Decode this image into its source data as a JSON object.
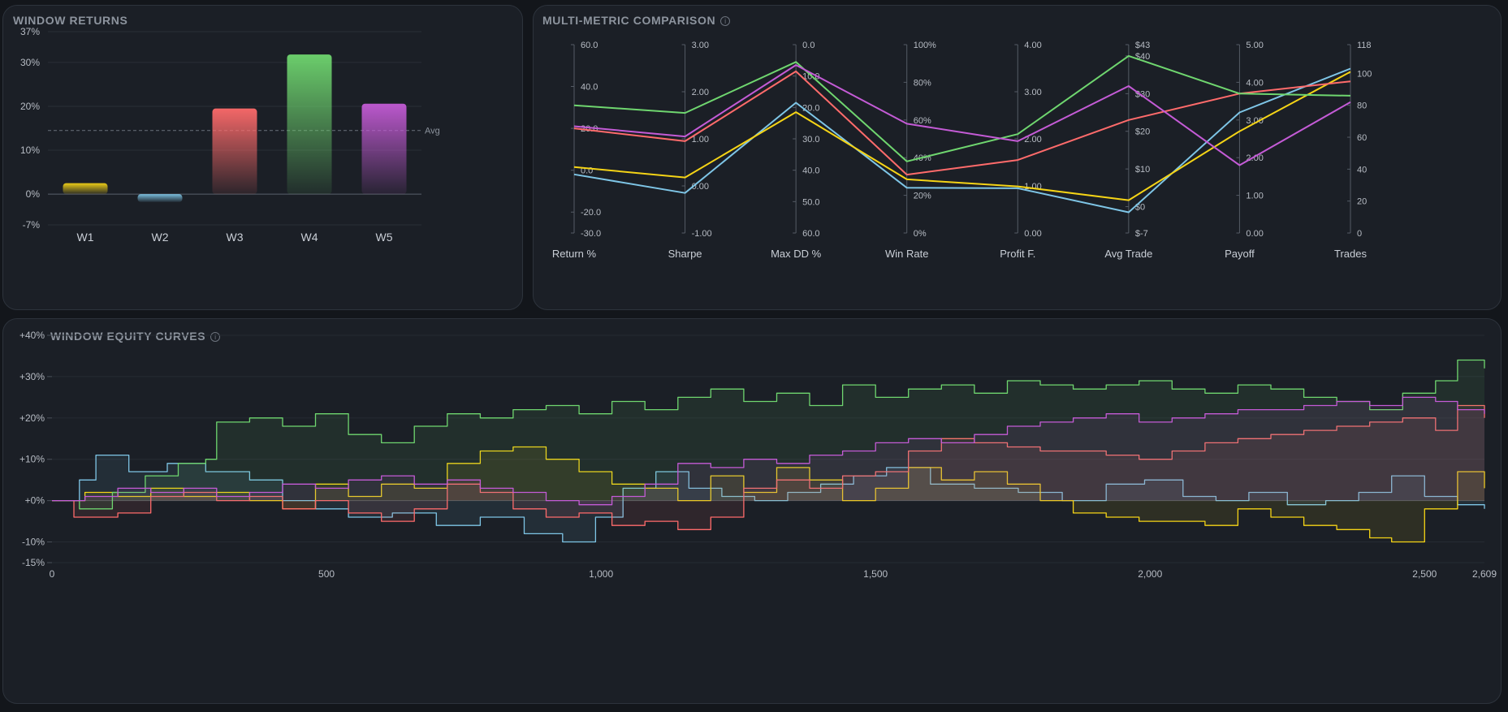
{
  "chart_data": [
    {
      "type": "bar",
      "title": "WINDOW RETURNS",
      "categories": [
        "W1",
        "W2",
        "W3",
        "W4",
        "W5"
      ],
      "values": [
        2.5,
        -1.8,
        19.5,
        31.8,
        20.6
      ],
      "colors": [
        "#f5d416",
        "#7ec5e6",
        "#ff6b6b",
        "#6fd66f",
        "#c45bd6"
      ],
      "ylim": [
        -7,
        37
      ],
      "yticks": [
        37,
        30,
        20,
        10,
        0,
        -7
      ],
      "ytick_labels": [
        "37%",
        "30%",
        "20%",
        "10%",
        "0%",
        "-7%"
      ],
      "reference_line": {
        "label": "Avg",
        "value": 14.5
      },
      "grid": true
    },
    {
      "type": "parallel-coordinates",
      "title": "MULTI-METRIC COMPARISON",
      "axes": [
        {
          "label": "Return %",
          "range": [
            -30,
            60
          ],
          "ticks": [
            60,
            40,
            20,
            0,
            -20,
            -30
          ],
          "tick_labels": [
            "60.0",
            "40.0",
            "20.0",
            "0.0",
            "-20.0",
            "-30.0"
          ]
        },
        {
          "label": "Sharpe",
          "range": [
            -1,
            3
          ],
          "ticks": [
            3,
            2,
            1,
            0,
            -1
          ],
          "tick_labels": [
            "3.00",
            "2.00",
            "1.00",
            "0.00",
            "-1.00"
          ]
        },
        {
          "label": "Max DD %",
          "range": [
            0,
            60
          ],
          "inverted": true,
          "ticks": [
            0,
            10,
            20,
            30,
            40,
            50,
            60
          ],
          "tick_labels": [
            "0.0",
            "10.0",
            "20.0",
            "30.0",
            "40.0",
            "50.0",
            "60.0"
          ]
        },
        {
          "label": "Win Rate",
          "range": [
            0,
            100
          ],
          "ticks": [
            100,
            80,
            60,
            40,
            20,
            0
          ],
          "tick_labels": [
            "100%",
            "80%",
            "60%",
            "40%",
            "20%",
            "0%"
          ]
        },
        {
          "label": "Profit F.",
          "range": [
            0,
            4
          ],
          "ticks": [
            4,
            3,
            2,
            1,
            0
          ],
          "tick_labels": [
            "4.00",
            "3.00",
            "2.00",
            "1.00",
            "0.00"
          ]
        },
        {
          "label": "Avg Trade",
          "range": [
            -7,
            43
          ],
          "ticks": [
            43,
            40,
            30,
            20,
            10,
            0,
            -7
          ],
          "tick_labels": [
            "$43",
            "$40",
            "$30",
            "$20",
            "$10",
            "$0",
            "$-7"
          ]
        },
        {
          "label": "Payoff",
          "range": [
            0,
            5
          ],
          "ticks": [
            5,
            4,
            3,
            2,
            1,
            0
          ],
          "tick_labels": [
            "5.00",
            "4.00",
            "3.00",
            "2.00",
            "1.00",
            "0.00"
          ]
        },
        {
          "label": "Trades",
          "range": [
            0,
            118
          ],
          "ticks": [
            118,
            100,
            80,
            60,
            40,
            20,
            0
          ],
          "tick_labels": [
            "118",
            "100",
            "80",
            "60",
            "40",
            "20",
            "0"
          ]
        }
      ],
      "series": [
        {
          "color": "#7ec5e6",
          "values": [
            -2,
            -0.15,
            18.5,
            24,
            0.95,
            -1.5,
            3.2,
            103
          ]
        },
        {
          "color": "#f5d416",
          "values": [
            1.5,
            0.18,
            21.5,
            28.5,
            0.99,
            1.7,
            2.7,
            101
          ]
        },
        {
          "color": "#ff6b6b",
          "values": [
            20,
            0.95,
            8.5,
            31,
            1.55,
            23,
            3.7,
            95
          ]
        },
        {
          "color": "#6fd66f",
          "values": [
            31,
            1.55,
            5.5,
            38,
            2.1,
            40,
            3.7,
            86
          ]
        },
        {
          "color": "#c45bd6",
          "values": [
            21,
            1.05,
            6.5,
            58,
            1.95,
            32,
            1.8,
            82
          ]
        }
      ]
    },
    {
      "type": "line",
      "title": "WINDOW EQUITY CURVES",
      "xlim": [
        0,
        2609
      ],
      "xticks": [
        0,
        500,
        1000,
        1500,
        2000,
        2500,
        2609
      ],
      "xtick_labels": [
        "0",
        "500",
        "1,000",
        "1,500",
        "2,000",
        "2,500",
        "2,609"
      ],
      "ylim": [
        -15,
        40
      ],
      "yticks": [
        40,
        30,
        20,
        10,
        0,
        -10,
        -15
      ],
      "ytick_labels": [
        "+40%",
        "+30%",
        "+20%",
        "+10%",
        "+0%",
        "-10%",
        "-15%"
      ],
      "area_fill": true,
      "series": [
        {
          "color": "#7ec5e6",
          "x": [
            0,
            50,
            80,
            140,
            210,
            280,
            360,
            420,
            480,
            540,
            620,
            700,
            780,
            860,
            930,
            990,
            1040,
            1100,
            1160,
            1220,
            1280,
            1340,
            1400,
            1460,
            1520,
            1600,
            1680,
            1760,
            1840,
            1920,
            1990,
            2060,
            2120,
            2180,
            2250,
            2320,
            2380,
            2440,
            2500,
            2560,
            2609
          ],
          "y": [
            0,
            5,
            11,
            7,
            9,
            7,
            5,
            0,
            -2,
            -4,
            -3,
            -6,
            -4,
            -8,
            -10,
            -4,
            3,
            7,
            3,
            1,
            0,
            2,
            4,
            6,
            8,
            4,
            3,
            2,
            0,
            4,
            5,
            1,
            0,
            2,
            -1,
            0,
            2,
            6,
            1,
            -1,
            -2
          ]
        },
        {
          "color": "#f5d416",
          "x": [
            0,
            60,
            120,
            180,
            240,
            300,
            360,
            420,
            480,
            540,
            600,
            660,
            720,
            780,
            840,
            900,
            960,
            1020,
            1080,
            1140,
            1200,
            1260,
            1320,
            1380,
            1440,
            1500,
            1560,
            1620,
            1680,
            1740,
            1800,
            1860,
            1920,
            1980,
            2040,
            2100,
            2160,
            2220,
            2280,
            2340,
            2400,
            2440,
            2500,
            2560,
            2609
          ],
          "y": [
            0,
            2,
            1,
            3,
            1,
            2,
            0,
            -2,
            4,
            1,
            4,
            3,
            9,
            12,
            13,
            10,
            7,
            4,
            3,
            0,
            6,
            2,
            8,
            5,
            0,
            3,
            8,
            5,
            7,
            4,
            0,
            -3,
            -4,
            -5,
            -5,
            -6,
            -2,
            -4,
            -6,
            -7,
            -9,
            -10,
            -2,
            7,
            3
          ]
        },
        {
          "color": "#ff6b6b",
          "x": [
            0,
            40,
            120,
            180,
            240,
            300,
            360,
            420,
            480,
            540,
            600,
            660,
            720,
            780,
            840,
            900,
            960,
            1020,
            1080,
            1140,
            1200,
            1260,
            1320,
            1380,
            1440,
            1500,
            1560,
            1620,
            1680,
            1740,
            1800,
            1860,
            1920,
            1980,
            2040,
            2100,
            2160,
            2220,
            2280,
            2340,
            2400,
            2460,
            2520,
            2560,
            2609
          ],
          "y": [
            0,
            -4,
            -3,
            1,
            2,
            0,
            1,
            -2,
            0,
            -3,
            -5,
            -2,
            4,
            2,
            -2,
            -4,
            -3,
            -6,
            -5,
            -7,
            -4,
            3,
            5,
            3,
            6,
            7,
            12,
            15,
            14,
            13,
            12,
            12,
            11,
            10,
            12,
            14,
            15,
            16,
            17,
            18,
            19,
            20,
            17,
            23,
            20
          ]
        },
        {
          "color": "#6fd66f",
          "x": [
            0,
            50,
            110,
            170,
            230,
            280,
            300,
            360,
            420,
            480,
            540,
            600,
            660,
            720,
            780,
            840,
            900,
            960,
            1020,
            1080,
            1140,
            1200,
            1260,
            1320,
            1380,
            1440,
            1500,
            1560,
            1620,
            1680,
            1740,
            1800,
            1860,
            1920,
            1980,
            2040,
            2100,
            2160,
            2220,
            2280,
            2340,
            2400,
            2460,
            2520,
            2560,
            2609
          ],
          "y": [
            0,
            -2,
            2,
            6,
            9,
            10,
            19,
            20,
            18,
            21,
            16,
            14,
            18,
            21,
            20,
            22,
            23,
            21,
            24,
            22,
            25,
            27,
            24,
            26,
            23,
            28,
            25,
            27,
            28,
            26,
            29,
            28,
            27,
            28,
            29,
            27,
            26,
            28,
            27,
            25,
            24,
            22,
            26,
            29,
            34,
            32
          ]
        },
        {
          "color": "#c45bd6",
          "x": [
            0,
            60,
            120,
            180,
            240,
            300,
            360,
            420,
            480,
            540,
            600,
            660,
            720,
            780,
            840,
            900,
            960,
            1020,
            1080,
            1140,
            1200,
            1260,
            1320,
            1380,
            1440,
            1500,
            1560,
            1620,
            1680,
            1740,
            1800,
            1860,
            1920,
            1980,
            2040,
            2100,
            2160,
            2220,
            2280,
            2340,
            2400,
            2460,
            2520,
            2560,
            2609
          ],
          "y": [
            0,
            1,
            3,
            2,
            3,
            1,
            2,
            4,
            3,
            5,
            6,
            4,
            5,
            3,
            2,
            0,
            -1,
            1,
            4,
            9,
            8,
            10,
            9,
            11,
            12,
            14,
            15,
            14,
            16,
            18,
            19,
            20,
            21,
            19,
            20,
            21,
            22,
            22,
            23,
            24,
            23,
            25,
            24,
            22,
            21
          ]
        }
      ]
    }
  ]
}
